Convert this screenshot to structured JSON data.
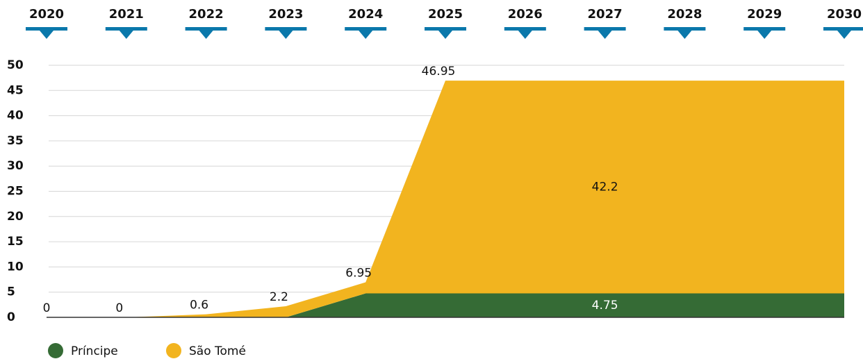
{
  "chart_data": {
    "type": "stacked_area",
    "categories": [
      "2020",
      "2021",
      "2022",
      "2023",
      "2024",
      "2025",
      "2026",
      "2027",
      "2028",
      "2029",
      "2030"
    ],
    "series": [
      {
        "name": "Príncipe",
        "color": "#356b35",
        "values": [
          0,
          0,
          0,
          0,
          4.75,
          4.75,
          4.75,
          4.75,
          4.75,
          4.75,
          4.75
        ]
      },
      {
        "name": "São Tomé",
        "color": "#f2b41f",
        "values": [
          0,
          0,
          0.6,
          2.2,
          2.2,
          42.2,
          42.2,
          42.2,
          42.2,
          42.2,
          42.2
        ]
      }
    ],
    "annotations": [
      {
        "x": "2020",
        "y": 0
      },
      {
        "x": "2021",
        "y": 0
      },
      {
        "x": "2022",
        "y": 0.6
      },
      {
        "x": "2023",
        "y": 2.2
      },
      {
        "x": "2024",
        "y": 6.95
      },
      {
        "x": "2025",
        "y": 46.95
      }
    ],
    "marker_color": "#0a78ab",
    "ylim": [
      0,
      50
    ],
    "yticks": [
      0,
      5,
      10,
      15,
      20,
      25,
      30,
      35,
      40,
      45,
      50
    ],
    "grid": true
  }
}
